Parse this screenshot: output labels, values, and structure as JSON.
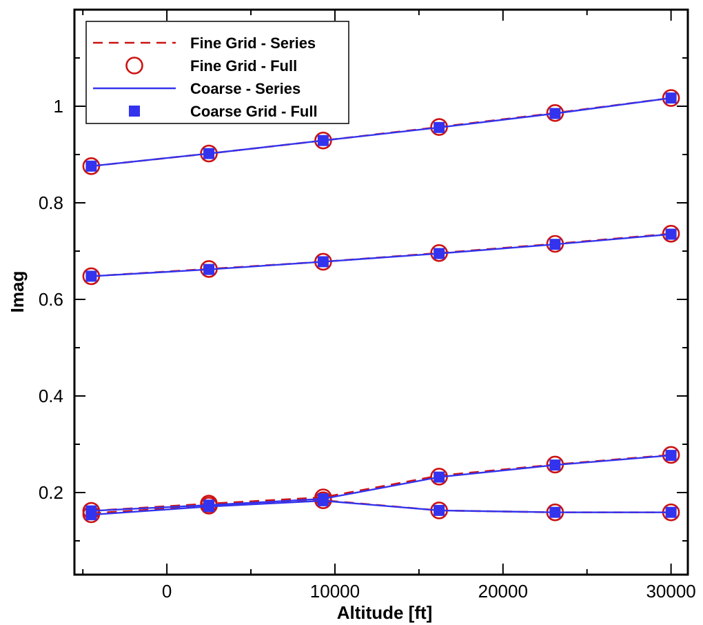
{
  "chart_data": {
    "type": "line",
    "xlabel": "Altitude [ft]",
    "ylabel": "Imag",
    "xlim": [
      -5500,
      31000
    ],
    "ylim": [
      0.03,
      1.2
    ],
    "xticks": [
      0,
      10000,
      20000,
      30000
    ],
    "xtick_labels": [
      "0",
      "10000",
      "20000",
      "30000"
    ],
    "yticks": [
      0.2,
      0.4,
      0.6,
      0.8,
      1.0
    ],
    "ytick_labels": [
      "0.2",
      "0.4",
      "0.6",
      "0.8",
      "1"
    ],
    "grid": false,
    "legend_position": "top-left",
    "x": [
      -4500,
      2500,
      9300,
      16200,
      23100,
      30000
    ],
    "series": [
      {
        "name": "Fine Grid - Series",
        "style": "dashed-line",
        "color": "#cc1111",
        "curves": [
          [
            0.876,
            0.902,
            0.929,
            0.957,
            0.986,
            1.017
          ],
          [
            0.648,
            0.663,
            0.678,
            0.696,
            0.715,
            0.736
          ],
          [
            0.162,
            0.177,
            0.19,
            0.235,
            0.258,
            0.278
          ],
          [
            0.157,
            0.172,
            0.184,
            0.163,
            0.159,
            0.159
          ]
        ]
      },
      {
        "name": "Fine Grid - Full",
        "style": "open-circle",
        "color": "#cc1111",
        "curves": [
          [
            0.876,
            0.902,
            0.929,
            0.957,
            0.986,
            1.017
          ],
          [
            0.648,
            0.663,
            0.678,
            0.696,
            0.715,
            0.736
          ],
          [
            0.162,
            0.177,
            0.19,
            0.233,
            0.258,
            0.278
          ],
          [
            0.155,
            0.173,
            0.184,
            0.163,
            0.159,
            0.159
          ]
        ]
      },
      {
        "name": "Coarse - Series",
        "style": "solid-line",
        "color": "#3333ee",
        "curves": [
          [
            0.876,
            0.902,
            0.929,
            0.956,
            0.985,
            1.017
          ],
          [
            0.648,
            0.662,
            0.678,
            0.695,
            0.714,
            0.735
          ],
          [
            0.162,
            0.174,
            0.187,
            0.232,
            0.257,
            0.277
          ],
          [
            0.154,
            0.171,
            0.183,
            0.163,
            0.159,
            0.159
          ]
        ]
      },
      {
        "name": "Coarse Grid - Full",
        "style": "filled-square",
        "color": "#3333ee",
        "curves": [
          [
            0.876,
            0.902,
            0.929,
            0.956,
            0.985,
            1.017
          ],
          [
            0.648,
            0.662,
            0.678,
            0.695,
            0.714,
            0.735
          ],
          [
            0.162,
            0.174,
            0.187,
            0.232,
            0.257,
            0.277
          ],
          [
            0.154,
            0.171,
            0.183,
            0.163,
            0.159,
            0.159
          ]
        ]
      }
    ]
  }
}
